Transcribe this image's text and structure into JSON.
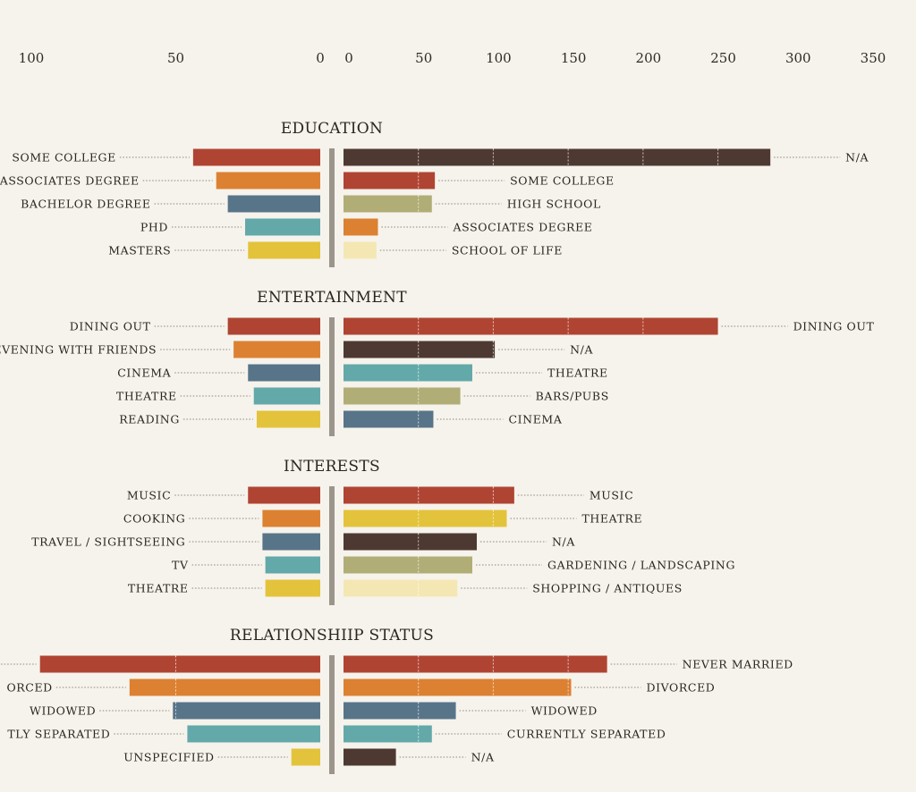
{
  "chart_data": {
    "type": "bar",
    "left_axis": {
      "ticks": [
        100,
        50,
        0
      ],
      "range": [
        0,
        100
      ],
      "direction": "leftward"
    },
    "right_axis": {
      "ticks": [
        0,
        50,
        100,
        150,
        200,
        250,
        300,
        350
      ],
      "range": [
        0,
        350
      ]
    },
    "groups": [
      {
        "title": "EDUCATION",
        "left": [
          {
            "label": "SOME COLLEGE",
            "value": 44,
            "color": "#b04433"
          },
          {
            "label": "ASSOCIATES DEGREE",
            "value": 36,
            "color": "#dc8132"
          },
          {
            "label": "BACHELOR DEGREE",
            "value": 32,
            "color": "#587489"
          },
          {
            "label": "PHD",
            "value": 26,
            "color": "#63a9a9"
          },
          {
            "label": "MASTERS",
            "value": 25,
            "color": "#e3c33b"
          }
        ],
        "right": [
          {
            "label": "N/A",
            "value": 285,
            "color": "#4e3932"
          },
          {
            "label": "SOME COLLEGE",
            "value": 61,
            "color": "#b04433"
          },
          {
            "label": "HIGH SCHOOL",
            "value": 59,
            "color": "#b1ad76"
          },
          {
            "label": "ASSOCIATES DEGREE",
            "value": 23,
            "color": "#dc8132"
          },
          {
            "label": "SCHOOL OF LIFE",
            "value": 22,
            "color": "#f5e7b3"
          }
        ]
      },
      {
        "title": "ENTERTAINMENT",
        "left": [
          {
            "label": "DINING OUT",
            "value": 32,
            "color": "#b04433"
          },
          {
            "label": "EVENING WITH FRIENDS",
            "value": 30,
            "color": "#dc8132"
          },
          {
            "label": "CINEMA",
            "value": 25,
            "color": "#587489"
          },
          {
            "label": "THEATRE",
            "value": 23,
            "color": "#63a9a9"
          },
          {
            "label": "READING",
            "value": 22,
            "color": "#e3c33b"
          }
        ],
        "right": [
          {
            "label": "DINING OUT",
            "value": 250,
            "color": "#b04433"
          },
          {
            "label": "N/A",
            "value": 101,
            "color": "#4e3932"
          },
          {
            "label": "THEATRE",
            "value": 86,
            "color": "#63a9a9"
          },
          {
            "label": "BARS/PUBS",
            "value": 78,
            "color": "#b1ad76"
          },
          {
            "label": "CINEMA",
            "value": 60,
            "color": "#587489"
          }
        ]
      },
      {
        "title": "INTERESTS",
        "left": [
          {
            "label": "MUSIC",
            "value": 25,
            "color": "#b04433"
          },
          {
            "label": "COOKING",
            "value": 20,
            "color": "#dc8132"
          },
          {
            "label": "TRAVEL / SIGHTSEEING",
            "value": 20,
            "color": "#587489"
          },
          {
            "label": "TV",
            "value": 19,
            "color": "#63a9a9"
          },
          {
            "label": "THEATRE",
            "value": 19,
            "color": "#e3c33b"
          }
        ],
        "right": [
          {
            "label": "MUSIC",
            "value": 114,
            "color": "#b04433"
          },
          {
            "label": "THEATRE",
            "value": 109,
            "color": "#e3c33b"
          },
          {
            "label": "N/A",
            "value": 89,
            "color": "#4e3932"
          },
          {
            "label": "GARDENING / LANDSCAPING",
            "value": 86,
            "color": "#b1ad76"
          },
          {
            "label": "SHOPPING / ANTIQUES",
            "value": 76,
            "color": "#f5e7b3"
          }
        ]
      },
      {
        "title": "RELATIONSHIIP STATUS",
        "left": [
          {
            "label": "",
            "value": 97,
            "color": "#b04433"
          },
          {
            "label": "ORCED",
            "value": 66,
            "color": "#dc8132"
          },
          {
            "label": "WIDOWED",
            "value": 51,
            "color": "#587489"
          },
          {
            "label": "TLY SEPARATED",
            "value": 46,
            "color": "#63a9a9"
          },
          {
            "label": "UNSPECIFIED",
            "value": 10,
            "color": "#e3c33b"
          }
        ],
        "right": [
          {
            "label": "NEVER MARRIED",
            "value": 176,
            "color": "#b04433"
          },
          {
            "label": "DIVORCED",
            "value": 152,
            "color": "#dc8132"
          },
          {
            "label": "WIDOWED",
            "value": 75,
            "color": "#587489"
          },
          {
            "label": "CURRENTLY SEPARATED",
            "value": 59,
            "color": "#63a9a9"
          },
          {
            "label": "N/A",
            "value": 35,
            "color": "#4e3932"
          }
        ]
      }
    ]
  }
}
